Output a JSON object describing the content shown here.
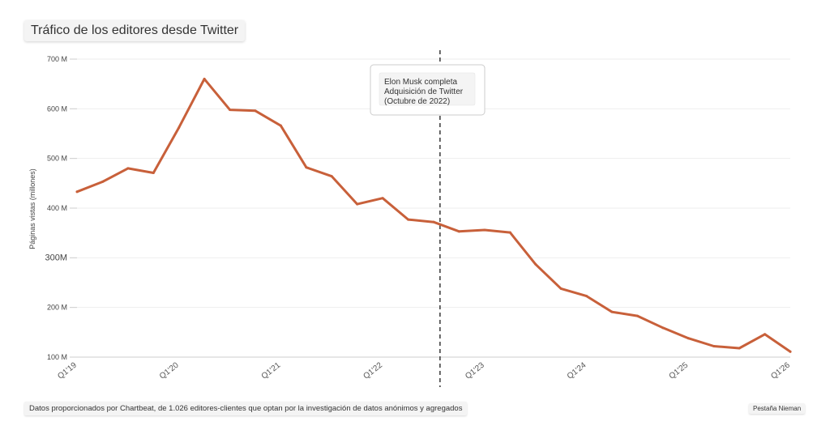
{
  "chart_data": {
    "type": "line",
    "title": "Tráfico de los editores desde Twitter",
    "ylabel": "Páginas vistas (millones)",
    "xlabel": "",
    "ylim": [
      100,
      700
    ],
    "grid": true,
    "line_color": "#c8603a",
    "y_ticks": [
      {
        "value": 700,
        "label": "700 M"
      },
      {
        "value": 600,
        "label": "600 M"
      },
      {
        "value": 500,
        "label": "500 M"
      },
      {
        "value": 400,
        "label": "400 M"
      },
      {
        "value": 300,
        "label": "300M"
      },
      {
        "value": 200,
        "label": "200 M"
      },
      {
        "value": 100,
        "label": "100 M"
      }
    ],
    "x_ticks": [
      {
        "index": 0,
        "label": "Q1'19"
      },
      {
        "index": 4,
        "label": "Q1'20"
      },
      {
        "index": 8,
        "label": "Q1'21"
      },
      {
        "index": 12,
        "label": "Q1'22"
      },
      {
        "index": 16,
        "label": "Q1'23"
      },
      {
        "index": 20,
        "label": "Q1'24"
      },
      {
        "index": 24,
        "label": "Q1'25"
      },
      {
        "index": 28,
        "label": "Q1'26"
      }
    ],
    "x": [
      "Q1'19",
      "Q2'19",
      "Q3'19",
      "Q4'19",
      "Q1'20",
      "Q2'20",
      "Q3'20",
      "Q4'20",
      "Q1'21",
      "Q2'21",
      "Q3'21",
      "Q4'21",
      "Q1'22",
      "Q2'22",
      "Q3'22",
      "Q4'22",
      "Q1'23",
      "Q2'23",
      "Q3'23",
      "Q4'23",
      "Q1'24",
      "Q2'24",
      "Q3'24",
      "Q4'24",
      "Q1'25",
      "Q2'25",
      "Q3'25",
      "Q4'25",
      "Q1'26"
    ],
    "series": [
      {
        "name": "",
        "values": [
          433,
          453,
          480,
          471,
          562,
          660,
          598,
          596,
          566,
          482,
          464,
          408,
          420,
          377,
          372,
          353,
          356,
          351,
          287,
          238,
          223,
          191,
          183,
          159,
          138,
          122,
          118,
          146,
          111
        ]
      }
    ],
    "annotation": {
      "x_value": "Q3'22",
      "lines": [
        "Elon Musk completa",
        "Adquisición de Twitter",
        "(Octubre de 2022)"
      ]
    }
  },
  "footer": "Datos proporcionados por Chartbeat, de 1.026 editores-clientes que optan por la investigación de datos anónimos y agregados",
  "credit": "Pestaña Nieman"
}
